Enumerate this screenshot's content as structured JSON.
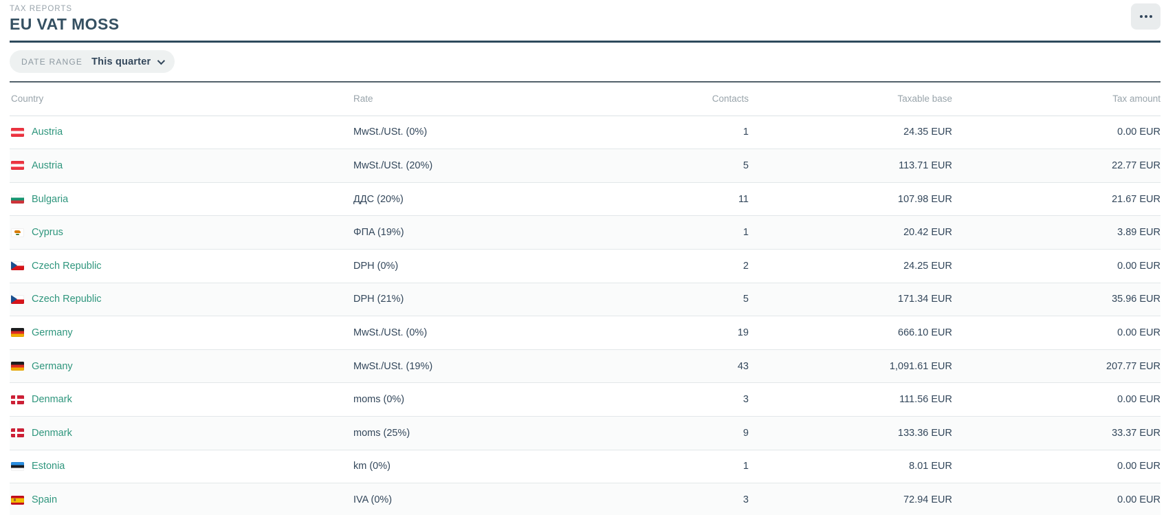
{
  "header": {
    "eyebrow": "TAX REPORTS",
    "title": "EU VAT MOSS",
    "more_button": "ellipsis-menu"
  },
  "filters": {
    "date_range_label": "DATE RANGE",
    "date_range_value": "This quarter"
  },
  "colors": {
    "accent_navy": "#33475b",
    "link_teal": "#2f967d",
    "muted_gray": "#99a4ab",
    "rule_dark": "#2e4a5c"
  },
  "table": {
    "columns": {
      "country": "Country",
      "rate": "Rate",
      "contacts": "Contacts",
      "taxable_base": "Taxable base",
      "tax_amount": "Tax amount"
    },
    "rows": [
      {
        "country": "Austria",
        "flag": "austria-flag",
        "rate": "MwSt./USt. (0%)",
        "contacts": "1",
        "taxable_base": "24.35 EUR",
        "tax_amount": "0.00 EUR"
      },
      {
        "country": "Austria",
        "flag": "austria-flag",
        "rate": "MwSt./USt. (20%)",
        "contacts": "5",
        "taxable_base": "113.71 EUR",
        "tax_amount": "22.77 EUR"
      },
      {
        "country": "Bulgaria",
        "flag": "bulgaria-flag",
        "rate": "ДДС (20%)",
        "contacts": "11",
        "taxable_base": "107.98 EUR",
        "tax_amount": "21.67 EUR"
      },
      {
        "country": "Cyprus",
        "flag": "cyprus-flag",
        "rate": "ΦΠΑ (19%)",
        "contacts": "1",
        "taxable_base": "20.42 EUR",
        "tax_amount": "3.89 EUR"
      },
      {
        "country": "Czech Republic",
        "flag": "czechia-flag",
        "rate": "DPH (0%)",
        "contacts": "2",
        "taxable_base": "24.25 EUR",
        "tax_amount": "0.00 EUR"
      },
      {
        "country": "Czech Republic",
        "flag": "czechia-flag",
        "rate": "DPH (21%)",
        "contacts": "5",
        "taxable_base": "171.34 EUR",
        "tax_amount": "35.96 EUR"
      },
      {
        "country": "Germany",
        "flag": "germany-flag",
        "rate": "MwSt./USt. (0%)",
        "contacts": "19",
        "taxable_base": "666.10 EUR",
        "tax_amount": "0.00 EUR"
      },
      {
        "country": "Germany",
        "flag": "germany-flag",
        "rate": "MwSt./USt. (19%)",
        "contacts": "43",
        "taxable_base": "1,091.61 EUR",
        "tax_amount": "207.77 EUR"
      },
      {
        "country": "Denmark",
        "flag": "denmark-flag",
        "rate": "moms (0%)",
        "contacts": "3",
        "taxable_base": "111.56 EUR",
        "tax_amount": "0.00 EUR"
      },
      {
        "country": "Denmark",
        "flag": "denmark-flag",
        "rate": "moms (25%)",
        "contacts": "9",
        "taxable_base": "133.36 EUR",
        "tax_amount": "33.37 EUR"
      },
      {
        "country": "Estonia",
        "flag": "estonia-flag",
        "rate": "km (0%)",
        "contacts": "1",
        "taxable_base": "8.01 EUR",
        "tax_amount": "0.00 EUR"
      },
      {
        "country": "Spain",
        "flag": "spain-flag",
        "rate": "IVA (0%)",
        "contacts": "3",
        "taxable_base": "72.94 EUR",
        "tax_amount": "0.00 EUR"
      }
    ]
  }
}
